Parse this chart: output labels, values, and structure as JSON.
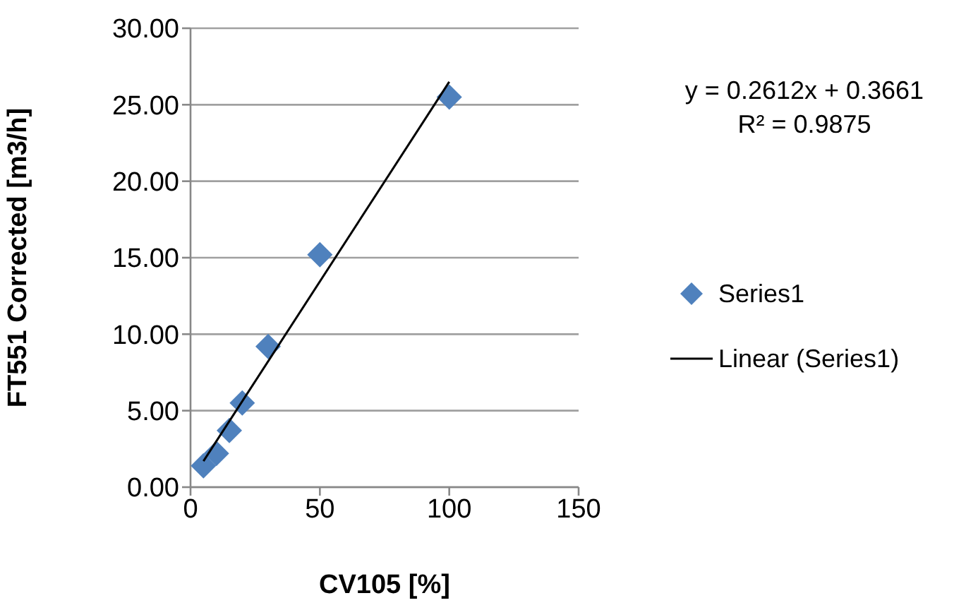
{
  "chart_data": {
    "type": "scatter",
    "xlabel": "CV105 [%]",
    "ylabel": "FT551 Corrected [m3/h]",
    "series": [
      {
        "name": "Series1",
        "color": "#4f81bd",
        "marker": "diamond",
        "x": [
          5,
          10,
          15,
          20,
          30,
          50,
          100
        ],
        "values": [
          1.4,
          2.2,
          3.7,
          5.5,
          9.2,
          15.2,
          25.5
        ]
      },
      {
        "name": "Linear (Series1)",
        "type": "line",
        "color": "#000000",
        "marker": "none",
        "x": [
          5,
          100
        ],
        "values": [
          1.7,
          26.5
        ]
      }
    ],
    "xlim": [
      0,
      150
    ],
    "xticks": [
      0,
      50,
      100,
      150
    ],
    "ylim": [
      0,
      30
    ],
    "yticks": [
      {
        "value": 0,
        "label": "0.00"
      },
      {
        "value": 5,
        "label": "5.00"
      },
      {
        "value": 10,
        "label": "10.00"
      },
      {
        "value": 15,
        "label": "15.00"
      },
      {
        "value": 20,
        "label": "20.00"
      },
      {
        "value": 25,
        "label": "25.00"
      },
      {
        "value": 30,
        "label": "30.00"
      }
    ],
    "grid": "y",
    "legend": "right",
    "annotations": [
      "y = 0.2612x + 0.3661",
      "R² = 0.9875"
    ]
  }
}
